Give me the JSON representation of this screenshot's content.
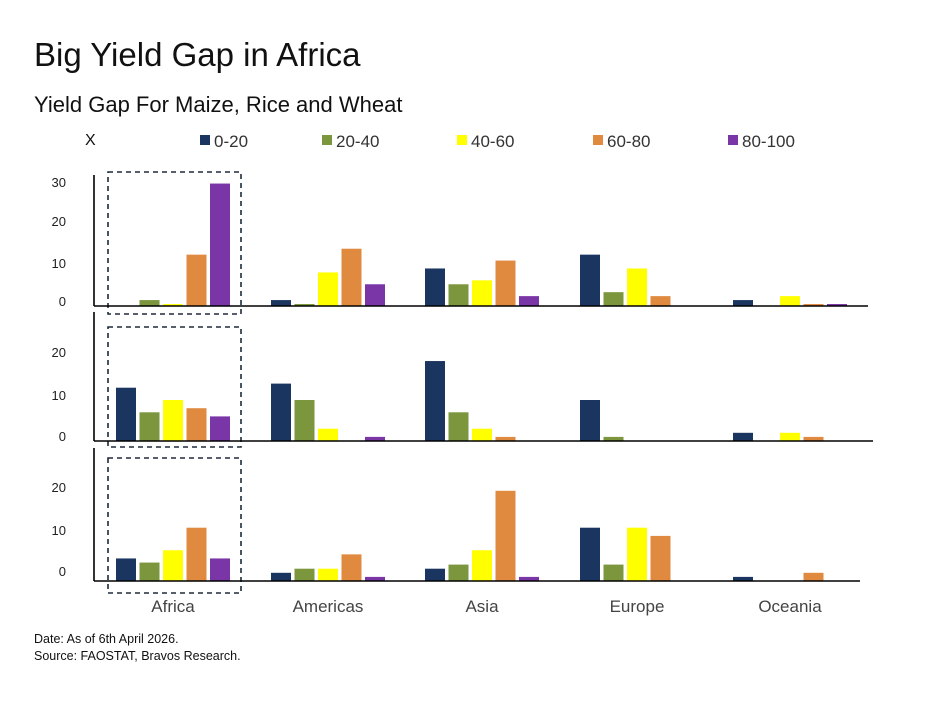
{
  "title": "Big Yield Gap in Africa",
  "subtitle": "Yield Gap For Maize, Rice and Wheat",
  "footer": {
    "date": "Date: As of 6th April 2026.",
    "source": "Source: FAOSTAT, Bravos Research."
  },
  "colors": {
    "0-20": "#1a3560",
    "20-40": "#7b963d",
    "40-60": "#ffff00",
    "60-80": "#e08a40",
    "80-100": "#7a35a7",
    "axis": "#000000",
    "highlight_border": "#1f2a3a"
  },
  "chart_data": {
    "type": "bar",
    "unit_label": "X",
    "categories": [
      "Africa",
      "Americas",
      "Asia",
      "Europe",
      "Oceania"
    ],
    "series_names": [
      "0-20",
      "20-40",
      "40-60",
      "60-80",
      "80-100"
    ],
    "legend_placement": "top",
    "highlight_category": "Africa",
    "grid": false,
    "panels": [
      {
        "ylim": [
          0,
          32
        ],
        "yticks": [
          "0",
          "10",
          "20",
          "30"
        ],
        "values": [
          [
            0,
            1.5,
            0.5,
            13,
            31
          ],
          [
            1.5,
            0.5,
            8.5,
            14.5,
            5.5
          ],
          [
            9.5,
            5.5,
            6.5,
            11.5,
            2.5
          ],
          [
            13,
            3.5,
            9.5,
            2.5,
            0
          ],
          [
            1.5,
            0,
            2.5,
            0.5,
            0.5
          ]
        ]
      },
      {
        "ylim": [
          0,
          20
        ],
        "yticks": [
          "0",
          "10",
          "20"
        ],
        "values": [
          [
            13,
            7,
            10,
            8,
            6
          ],
          [
            14,
            10,
            3,
            0,
            1
          ],
          [
            19.5,
            7,
            3,
            1,
            0
          ],
          [
            10,
            1,
            0,
            0,
            0
          ],
          [
            2,
            0,
            2,
            1,
            0
          ]
        ]
      },
      {
        "ylim": [
          0,
          20
        ],
        "yticks": [
          "0",
          "10",
          "20"
        ],
        "values": [
          [
            5.5,
            4.5,
            7.5,
            13,
            5.5
          ],
          [
            2,
            3,
            3,
            6.5,
            1
          ],
          [
            3,
            4,
            7.5,
            22,
            1
          ],
          [
            13,
            4,
            13,
            11,
            0
          ],
          [
            1,
            0,
            0,
            2,
            0
          ]
        ]
      }
    ]
  }
}
